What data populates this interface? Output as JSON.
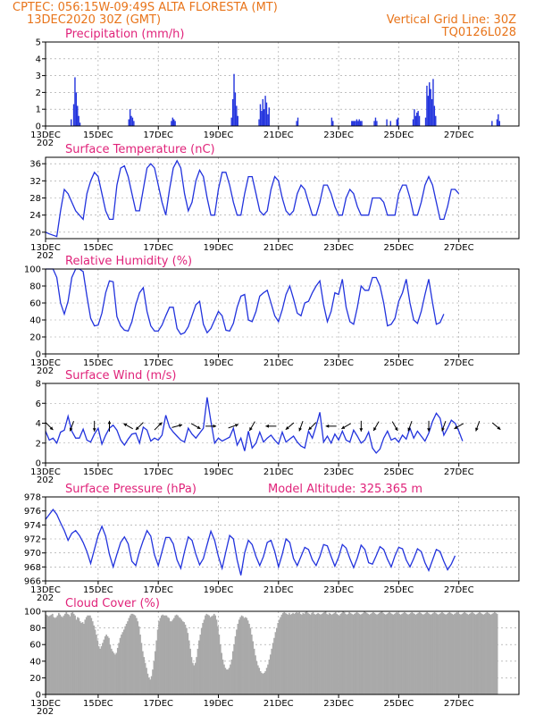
{
  "header": {
    "line1": "CPTEC:   056:15W-09:49S   ALTA FLORESTA (MT)",
    "line2": "13DEC2020 30Z (GMT)",
    "grid_note": "Vertical Grid Line: 30Z",
    "code": "TQ0126L028"
  },
  "colors": {
    "header": "#e8741a",
    "title": "#e0237a",
    "series": "#2233dd",
    "cloud": "#a9a9a9",
    "wind_arrow": "#000000"
  },
  "date_labels": [
    "13DEC",
    "15DEC",
    "17DEC",
    "19DEC",
    "21DEC",
    "23DEC",
    "25DEC",
    "27DEC"
  ],
  "year_stub": "202",
  "chart_data": [
    {
      "id": "precip",
      "type": "bar",
      "title": "Precipitation  (mm/h)",
      "ylim": [
        0,
        5
      ],
      "yticks": [
        "0",
        "1",
        "2",
        "3",
        "4",
        "5"
      ],
      "x_start": "13DEC2020 30Z",
      "step_hours": 1,
      "values_at_hour": [
        [
          20,
          0.4
        ],
        [
          22,
          1.3
        ],
        [
          23,
          2.9
        ],
        [
          24,
          2.0
        ],
        [
          25,
          1.2
        ],
        [
          26,
          0.6
        ],
        [
          27,
          0.2
        ],
        [
          66,
          0.4
        ],
        [
          67,
          1.0
        ],
        [
          68,
          0.6
        ],
        [
          69,
          0.5
        ],
        [
          70,
          0.3
        ],
        [
          100,
          0.3
        ],
        [
          101,
          0.5
        ],
        [
          102,
          0.4
        ],
        [
          103,
          0.3
        ],
        [
          148,
          0.5
        ],
        [
          149,
          1.6
        ],
        [
          150,
          3.1
        ],
        [
          151,
          2.0
        ],
        [
          152,
          1.2
        ],
        [
          153,
          0.6
        ],
        [
          170,
          0.4
        ],
        [
          171,
          1.3
        ],
        [
          172,
          0.9
        ],
        [
          173,
          1.6
        ],
        [
          174,
          1.0
        ],
        [
          175,
          1.8
        ],
        [
          176,
          1.4
        ],
        [
          177,
          0.7
        ],
        [
          178,
          1.1
        ],
        [
          200,
          0.3
        ],
        [
          201,
          0.5
        ],
        [
          228,
          0.5
        ],
        [
          229,
          0.3
        ],
        [
          244,
          0.3
        ],
        [
          245,
          0.3
        ],
        [
          246,
          0.3
        ],
        [
          247,
          0.3
        ],
        [
          248,
          0.4
        ],
        [
          249,
          0.3
        ],
        [
          250,
          0.4
        ],
        [
          251,
          0.3
        ],
        [
          252,
          0.3
        ],
        [
          262,
          0.3
        ],
        [
          263,
          0.5
        ],
        [
          264,
          0.3
        ],
        [
          272,
          0.4
        ],
        [
          275,
          0.3
        ],
        [
          280,
          0.4
        ],
        [
          281,
          0.5
        ],
        [
          293,
          0.4
        ],
        [
          294,
          1.0
        ],
        [
          295,
          0.6
        ],
        [
          296,
          0.8
        ],
        [
          297,
          0.9
        ],
        [
          298,
          0.6
        ],
        [
          303,
          0.5
        ],
        [
          304,
          2.4
        ],
        [
          305,
          1.8
        ],
        [
          306,
          2.6
        ],
        [
          307,
          2.2
        ],
        [
          308,
          1.6
        ],
        [
          309,
          2.8
        ],
        [
          310,
          1.2
        ],
        [
          311,
          0.6
        ],
        [
          356,
          0.3
        ],
        [
          360,
          0.4
        ],
        [
          361,
          0.7
        ],
        [
          362,
          0.3
        ]
      ]
    },
    {
      "id": "temp",
      "type": "line",
      "title": "Surface Temperature (nC)",
      "ylim": [
        18.5,
        37.5
      ],
      "yticks": [
        "20",
        "24",
        "28",
        "32",
        "36"
      ],
      "ytick_values": [
        20,
        24,
        28,
        32,
        36
      ],
      "x_start": "13DEC2020 30Z",
      "step_hours": 3,
      "values": [
        20,
        19.6,
        19.3,
        19,
        25,
        30,
        29,
        27,
        25,
        24,
        23,
        29,
        32,
        34,
        33,
        29,
        25,
        23,
        23,
        31,
        35,
        35.5,
        33,
        29,
        25,
        25,
        30,
        35,
        36,
        35,
        31,
        27,
        24,
        30,
        35,
        36.7,
        35,
        29,
        25,
        27,
        32,
        34.5,
        33,
        28,
        24,
        24,
        30,
        34,
        34,
        31,
        27,
        24,
        24,
        29,
        33,
        33,
        29,
        25,
        24,
        25,
        30,
        33,
        32,
        28,
        25,
        24,
        25,
        29,
        31,
        30,
        27,
        24,
        24,
        27,
        31,
        31,
        29,
        26,
        24,
        24,
        28,
        30,
        29,
        26,
        24,
        24,
        24,
        28,
        28,
        28,
        27,
        24,
        24,
        24,
        29,
        31,
        31,
        28,
        24,
        24,
        27,
        31,
        33,
        31,
        27,
        23,
        23,
        26,
        30,
        30,
        29
      ]
    },
    {
      "id": "rh",
      "type": "line",
      "title": "Relative Humidity  (%)",
      "ylim": [
        0,
        100
      ],
      "yticks": [
        "0",
        "20",
        "40",
        "60",
        "80",
        "100"
      ],
      "ytick_values": [
        0,
        20,
        40,
        60,
        80,
        100
      ],
      "x_start": "13DEC2020 30Z",
      "step_hours": 3,
      "values": [
        100,
        100,
        100,
        90,
        60,
        47,
        62,
        90,
        100,
        100,
        97,
        68,
        42,
        33,
        34,
        48,
        72,
        86,
        85,
        44,
        33,
        28,
        27,
        38,
        58,
        72,
        78,
        50,
        33,
        27,
        27,
        34,
        45,
        55,
        55,
        30,
        23,
        25,
        32,
        45,
        58,
        62,
        35,
        25,
        30,
        40,
        50,
        45,
        28,
        27,
        36,
        55,
        68,
        70,
        40,
        38,
        50,
        68,
        72,
        75,
        60,
        45,
        38,
        52,
        70,
        80,
        65,
        48,
        45,
        60,
        62,
        72,
        80,
        86,
        58,
        38,
        50,
        72,
        70,
        88,
        55,
        38,
        35,
        55,
        80,
        75,
        75,
        90,
        90,
        80,
        60,
        33,
        35,
        42,
        62,
        72,
        88,
        60,
        40,
        36,
        50,
        70,
        88,
        60,
        35,
        37,
        47
      ]
    },
    {
      "id": "wind",
      "type": "line",
      "title": "Surface Wind  (m/s)",
      "ylim": [
        0,
        8
      ],
      "yticks": [
        "0",
        "2",
        "4",
        "6",
        "8"
      ],
      "ytick_values": [
        0,
        2,
        4,
        6,
        8
      ],
      "x_start": "13DEC2020 30Z",
      "step_hours": 3,
      "values": [
        3.2,
        2.3,
        2.5,
        2.0,
        3.1,
        3.3,
        4.7,
        3.2,
        2.5,
        2.5,
        3.4,
        2.3,
        2.1,
        2.9,
        3.5,
        1.9,
        2.8,
        3.5,
        3.8,
        3.3,
        2.3,
        1.8,
        2.4,
        2.9,
        3.0,
        2.0,
        3.6,
        3.3,
        2.2,
        2.5,
        2.3,
        2.8,
        4.8,
        3.6,
        3.1,
        2.7,
        2.3,
        2.1,
        3.5,
        2.9,
        2.5,
        3.0,
        3.5,
        6.6,
        4.2,
        2.0,
        2.5,
        2.2,
        2.4,
        2.6,
        3.5,
        1.8,
        2.5,
        1.2,
        3.2,
        1.5,
        2.0,
        3.1,
        2.1,
        2.5,
        2.8,
        2.3,
        1.9,
        3.1,
        2.1,
        2.4,
        2.7,
        2.1,
        1.7,
        1.5,
        3.2,
        2.5,
        3.7,
        5.1,
        2.1,
        2.7,
        2.0,
        2.9,
        2.3,
        3.2,
        2.3,
        2.1,
        3.3,
        2.7,
        2.0,
        2.3,
        3.1,
        1.5,
        1.0,
        1.4,
        2.5,
        3.2,
        2.3,
        2.5,
        2.1,
        2.8,
        2.4,
        3.5,
        2.5,
        3.2,
        2.7,
        2.2,
        3.0,
        4.2,
        5.0,
        4.5,
        2.8,
        3.5,
        4.3,
        4.0,
        3.2,
        2.2
      ]
    },
    {
      "id": "pressure",
      "type": "line",
      "title": "Surface Pressure (hPa)",
      "annotation": "Model Altitude: 325.365  m",
      "ylim": [
        966,
        978
      ],
      "yticks": [
        "966",
        "968",
        "970",
        "972",
        "974",
        "976",
        "978"
      ],
      "ytick_values": [
        966,
        968,
        970,
        972,
        974,
        976,
        978
      ],
      "x_start": "13DEC2020 30Z",
      "step_hours": 3,
      "values": [
        974.8,
        975.5,
        976.2,
        975.5,
        974.3,
        973.2,
        971.8,
        972.8,
        973.2,
        972.5,
        971.5,
        970.2,
        968.5,
        970.5,
        972.5,
        973.8,
        972.4,
        969.8,
        968.0,
        969.8,
        971.5,
        972.3,
        971.3,
        968.8,
        968.2,
        970.2,
        971.8,
        973.2,
        972.4,
        969.7,
        968.2,
        970.2,
        972.2,
        972.2,
        971.3,
        969.0,
        967.8,
        970.2,
        972.3,
        971.8,
        969.8,
        968.3,
        969.2,
        971.2,
        973.1,
        971.8,
        969.5,
        967.8,
        970.2,
        972.5,
        972.0,
        969.0,
        966.8,
        970.0,
        971.8,
        971.2,
        969.5,
        968.2,
        969.5,
        971.5,
        971.8,
        970.2,
        968.0,
        969.8,
        972.0,
        971.5,
        969.2,
        968.2,
        969.5,
        970.8,
        970.5,
        969.0,
        968.2,
        969.5,
        971.2,
        971.0,
        969.5,
        968.1,
        969.4,
        971.2,
        970.7,
        969.2,
        967.9,
        969.3,
        971.1,
        970.5,
        968.6,
        968.4,
        969.6,
        970.9,
        970.5,
        969.1,
        968.0,
        969.6,
        970.8,
        970.6,
        969.0,
        968.0,
        969.2,
        970.6,
        970.2,
        968.6,
        967.5,
        969.0,
        970.5,
        970.2,
        968.8,
        967.6,
        968.4,
        969.6
      ]
    },
    {
      "id": "cloud",
      "type": "bar",
      "title": "Cloud Cover (%)",
      "ylim": [
        0,
        100
      ],
      "yticks": [
        "0",
        "20",
        "40",
        "60",
        "80",
        "100"
      ],
      "ytick_values": [
        0,
        20,
        40,
        60,
        80,
        100
      ],
      "x_start": "13DEC2020 30Z",
      "step_hours": 1,
      "values": [
        96,
        95,
        94,
        95,
        96,
        97,
        93,
        92,
        93,
        95,
        98,
        96,
        94,
        93,
        95,
        97,
        99,
        97,
        96,
        94,
        98,
        99,
        97,
        95,
        90,
        93,
        92,
        88,
        86,
        87,
        85,
        90,
        93,
        95,
        95,
        95,
        92,
        88,
        83,
        78,
        72,
        65,
        58,
        55,
        58,
        62,
        66,
        70,
        72,
        70,
        68,
        60,
        55,
        52,
        50,
        48,
        50,
        56,
        62,
        68,
        72,
        75,
        78,
        82,
        85,
        88,
        92,
        95,
        97,
        97,
        96,
        95,
        92,
        88,
        82,
        72,
        62,
        52,
        45,
        38,
        32,
        25,
        20,
        18,
        22,
        30,
        40,
        52,
        65,
        78,
        88,
        92,
        95,
        96,
        95,
        95,
        95,
        93,
        92,
        88,
        88,
        90,
        92,
        95,
        96,
        95,
        93,
        92,
        90,
        88,
        87,
        84,
        80,
        74,
        65,
        55,
        45,
        38,
        35,
        38,
        45,
        55,
        65,
        72,
        80,
        86,
        90,
        95,
        97,
        96,
        95,
        93,
        94,
        95,
        97,
        95,
        90,
        82,
        72,
        60,
        50,
        42,
        36,
        32,
        30,
        30,
        32,
        36,
        42,
        52,
        60,
        70,
        78,
        85,
        90,
        93,
        95,
        94,
        92,
        93,
        92,
        89,
        85,
        80,
        72,
        64,
        55,
        47,
        40,
        35,
        32,
        28,
        26,
        25,
        26,
        28,
        32,
        36,
        42,
        48,
        55,
        62,
        68,
        75,
        80,
        86,
        90,
        93,
        96,
        98,
        99,
        98,
        97,
        96,
        98,
        96,
        97,
        98,
        97,
        98,
        99,
        98,
        99,
        97,
        96,
        98,
        97,
        99,
        100,
        98,
        97,
        96,
        98,
        99,
        97,
        96,
        97,
        98,
        97,
        96,
        97,
        98,
        99,
        100,
        97,
        96,
        98,
        97,
        96,
        97,
        98,
        99,
        97,
        96,
        95,
        97,
        98,
        100,
        99,
        97,
        96,
        97,
        99,
        98,
        97,
        96,
        97,
        98,
        99,
        98,
        97,
        96,
        97,
        98,
        100,
        99,
        98,
        97,
        96,
        97,
        98,
        99,
        98,
        97,
        96,
        97,
        98,
        99,
        100,
        98,
        97,
        96,
        97,
        98,
        99,
        98,
        97,
        96,
        97,
        98,
        99,
        98,
        97,
        96,
        97,
        98,
        99,
        98,
        97,
        96,
        97,
        98,
        99,
        98,
        97,
        96,
        97,
        98,
        99,
        98,
        97,
        96,
        97,
        98,
        99,
        98,
        97,
        96,
        97,
        98,
        99,
        98,
        97,
        96,
        97,
        98,
        99,
        98,
        97,
        96,
        97,
        98,
        99,
        98,
        97,
        96,
        97,
        98,
        99,
        98,
        97,
        96,
        97,
        98,
        99,
        98,
        97,
        96,
        97,
        98,
        99,
        98,
        97,
        96,
        97,
        98,
        99,
        98,
        97,
        96,
        97,
        98,
        99,
        98,
        97,
        96,
        97,
        98,
        99,
        98,
        97
      ]
    }
  ],
  "wind_arrows": [
    {
      "hour": 3,
      "dir_deg": 135
    },
    {
      "hour": 21,
      "dir_deg": 200
    },
    {
      "hour": 39,
      "dir_deg": 180
    },
    {
      "hour": 51,
      "dir_deg": 0
    },
    {
      "hour": 66,
      "dir_deg": 300
    },
    {
      "hour": 75,
      "dir_deg": 225
    },
    {
      "hour": 90,
      "dir_deg": 45
    },
    {
      "hour": 105,
      "dir_deg": 75
    },
    {
      "hour": 120,
      "dir_deg": 120
    },
    {
      "hour": 132,
      "dir_deg": 90
    },
    {
      "hour": 150,
      "dir_deg": 70
    },
    {
      "hour": 165,
      "dir_deg": 210
    },
    {
      "hour": 180,
      "dir_deg": 270
    },
    {
      "hour": 195,
      "dir_deg": 230
    },
    {
      "hour": 204,
      "dir_deg": 200
    },
    {
      "hour": 213,
      "dir_deg": 225
    },
    {
      "hour": 228,
      "dir_deg": 270
    },
    {
      "hour": 240,
      "dir_deg": 240
    },
    {
      "hour": 252,
      "dir_deg": 180
    },
    {
      "hour": 264,
      "dir_deg": 210
    },
    {
      "hour": 279,
      "dir_deg": 150
    },
    {
      "hour": 291,
      "dir_deg": 200
    },
    {
      "hour": 306,
      "dir_deg": 180
    },
    {
      "hour": 318,
      "dir_deg": 200
    },
    {
      "hour": 330,
      "dir_deg": 240
    },
    {
      "hour": 345,
      "dir_deg": 200
    },
    {
      "hour": 360,
      "dir_deg": 130
    }
  ]
}
